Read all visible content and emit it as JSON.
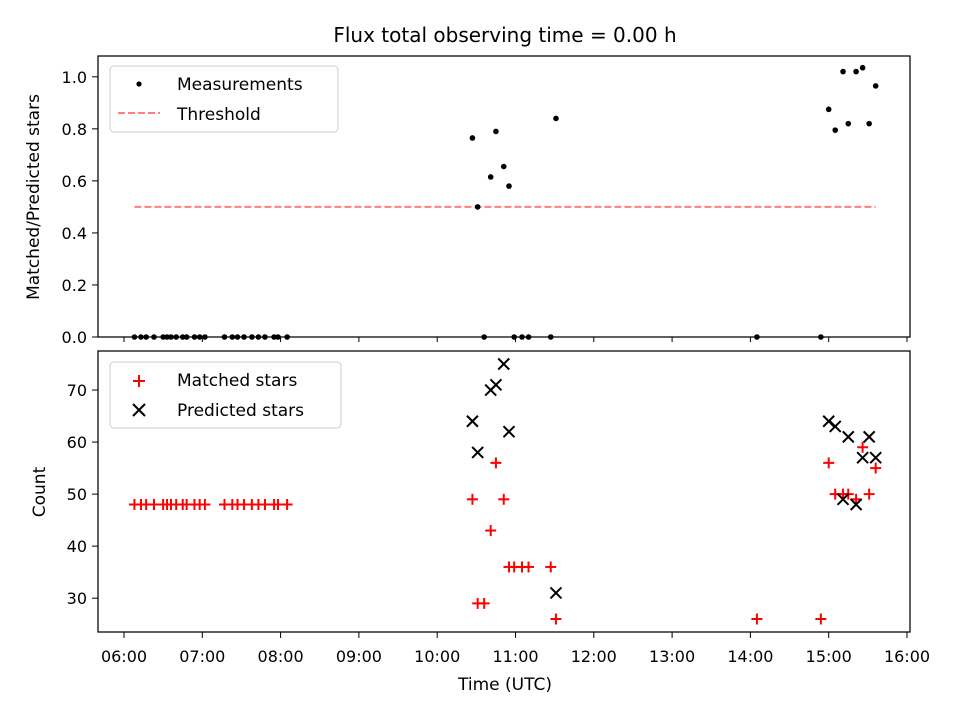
{
  "chart_data": [
    {
      "type": "scatter",
      "title": "Flux total observing time = 0.00 h",
      "ylabel": "Matched/Predicted stars",
      "xlabel": "",
      "ylim": [
        0,
        1.08
      ],
      "yticks": [
        "0.0",
        "0.2",
        "0.4",
        "0.6",
        "0.8",
        "1.0"
      ],
      "legend_position": "top-left",
      "series": [
        {
          "name": "Measurements",
          "marker": "dot",
          "color": "#000000",
          "points": [
            [
              "06:08",
              0.0
            ],
            [
              "06:13",
              0.0
            ],
            [
              "06:17",
              0.0
            ],
            [
              "06:23",
              0.0
            ],
            [
              "06:30",
              0.0
            ],
            [
              "06:33",
              0.0
            ],
            [
              "06:36",
              0.0
            ],
            [
              "06:40",
              0.0
            ],
            [
              "06:45",
              0.0
            ],
            [
              "06:48",
              0.0
            ],
            [
              "06:54",
              0.0
            ],
            [
              "06:58",
              0.0
            ],
            [
              "07:02",
              0.0
            ],
            [
              "07:17",
              0.0
            ],
            [
              "07:23",
              0.0
            ],
            [
              "07:27",
              0.0
            ],
            [
              "07:32",
              0.0
            ],
            [
              "07:38",
              0.0
            ],
            [
              "07:43",
              0.0
            ],
            [
              "07:48",
              0.0
            ],
            [
              "07:55",
              0.0
            ],
            [
              "07:58",
              0.0
            ],
            [
              "08:05",
              0.0
            ],
            [
              "10:27",
              0.765
            ],
            [
              "10:31",
              0.5
            ],
            [
              "10:36",
              0.0
            ],
            [
              "10:41",
              0.615
            ],
            [
              "10:45",
              0.79
            ],
            [
              "10:51",
              0.655
            ],
            [
              "10:55",
              0.58
            ],
            [
              "10:59",
              0.0
            ],
            [
              "11:05",
              0.0
            ],
            [
              "11:10",
              0.0
            ],
            [
              "11:27",
              0.0
            ],
            [
              "11:31",
              0.84
            ],
            [
              "14:05",
              0.0
            ],
            [
              "14:54",
              0.0
            ],
            [
              "15:00",
              0.875
            ],
            [
              "15:05",
              0.795
            ],
            [
              "15:11",
              1.02
            ],
            [
              "15:15",
              0.82
            ],
            [
              "15:21",
              1.02
            ],
            [
              "15:26",
              1.035
            ],
            [
              "15:31",
              0.82
            ],
            [
              "15:36",
              0.965
            ]
          ]
        },
        {
          "name": "Threshold",
          "style": "dashed",
          "color": "#ff7f7f",
          "points": [
            [
              "06:08",
              0.5
            ],
            [
              "15:36",
              0.5
            ]
          ]
        }
      ]
    },
    {
      "type": "scatter",
      "title": "",
      "ylabel": "Count",
      "xlabel": "Time (UTC)",
      "ylim": [
        23.5,
        77.5
      ],
      "yticks": [
        "30",
        "40",
        "50",
        "60",
        "70"
      ],
      "xticks": [
        "06:00",
        "07:00",
        "08:00",
        "09:00",
        "10:00",
        "11:00",
        "12:00",
        "13:00",
        "14:00",
        "15:00",
        "16:00"
      ],
      "legend_position": "top-left",
      "series": [
        {
          "name": "Matched stars",
          "marker": "plus",
          "color": "#ff0000",
          "points": [
            [
              "06:08",
              48
            ],
            [
              "06:13",
              48
            ],
            [
              "06:17",
              48
            ],
            [
              "06:23",
              48
            ],
            [
              "06:30",
              48
            ],
            [
              "06:33",
              48
            ],
            [
              "06:36",
              48
            ],
            [
              "06:40",
              48
            ],
            [
              "06:45",
              48
            ],
            [
              "06:48",
              48
            ],
            [
              "06:54",
              48
            ],
            [
              "06:58",
              48
            ],
            [
              "07:02",
              48
            ],
            [
              "07:17",
              48
            ],
            [
              "07:23",
              48
            ],
            [
              "07:27",
              48
            ],
            [
              "07:32",
              48
            ],
            [
              "07:38",
              48
            ],
            [
              "07:43",
              48
            ],
            [
              "07:48",
              48
            ],
            [
              "07:55",
              48
            ],
            [
              "07:58",
              48
            ],
            [
              "08:05",
              48
            ],
            [
              "10:27",
              49
            ],
            [
              "10:31",
              29
            ],
            [
              "10:36",
              29
            ],
            [
              "10:41",
              43
            ],
            [
              "10:45",
              56
            ],
            [
              "10:51",
              49
            ],
            [
              "10:55",
              36
            ],
            [
              "10:59",
              36
            ],
            [
              "11:05",
              36
            ],
            [
              "11:10",
              36
            ],
            [
              "11:27",
              36
            ],
            [
              "11:31",
              26
            ],
            [
              "14:05",
              26
            ],
            [
              "14:54",
              26
            ],
            [
              "15:00",
              56
            ],
            [
              "15:05",
              50
            ],
            [
              "15:11",
              50
            ],
            [
              "15:15",
              50
            ],
            [
              "15:21",
              49
            ],
            [
              "15:26",
              59
            ],
            [
              "15:31",
              50
            ],
            [
              "15:36",
              55
            ]
          ]
        },
        {
          "name": "Predicted stars",
          "marker": "x",
          "color": "#000000",
          "points": [
            [
              "10:27",
              64
            ],
            [
              "10:31",
              58
            ],
            [
              "10:41",
              70
            ],
            [
              "10:45",
              71
            ],
            [
              "10:51",
              75
            ],
            [
              "10:55",
              62
            ],
            [
              "11:31",
              31
            ],
            [
              "15:00",
              64
            ],
            [
              "15:05",
              63
            ],
            [
              "15:11",
              49
            ],
            [
              "15:15",
              61
            ],
            [
              "15:21",
              48
            ],
            [
              "15:26",
              57
            ],
            [
              "15:31",
              61
            ],
            [
              "15:36",
              57
            ]
          ]
        }
      ]
    }
  ]
}
